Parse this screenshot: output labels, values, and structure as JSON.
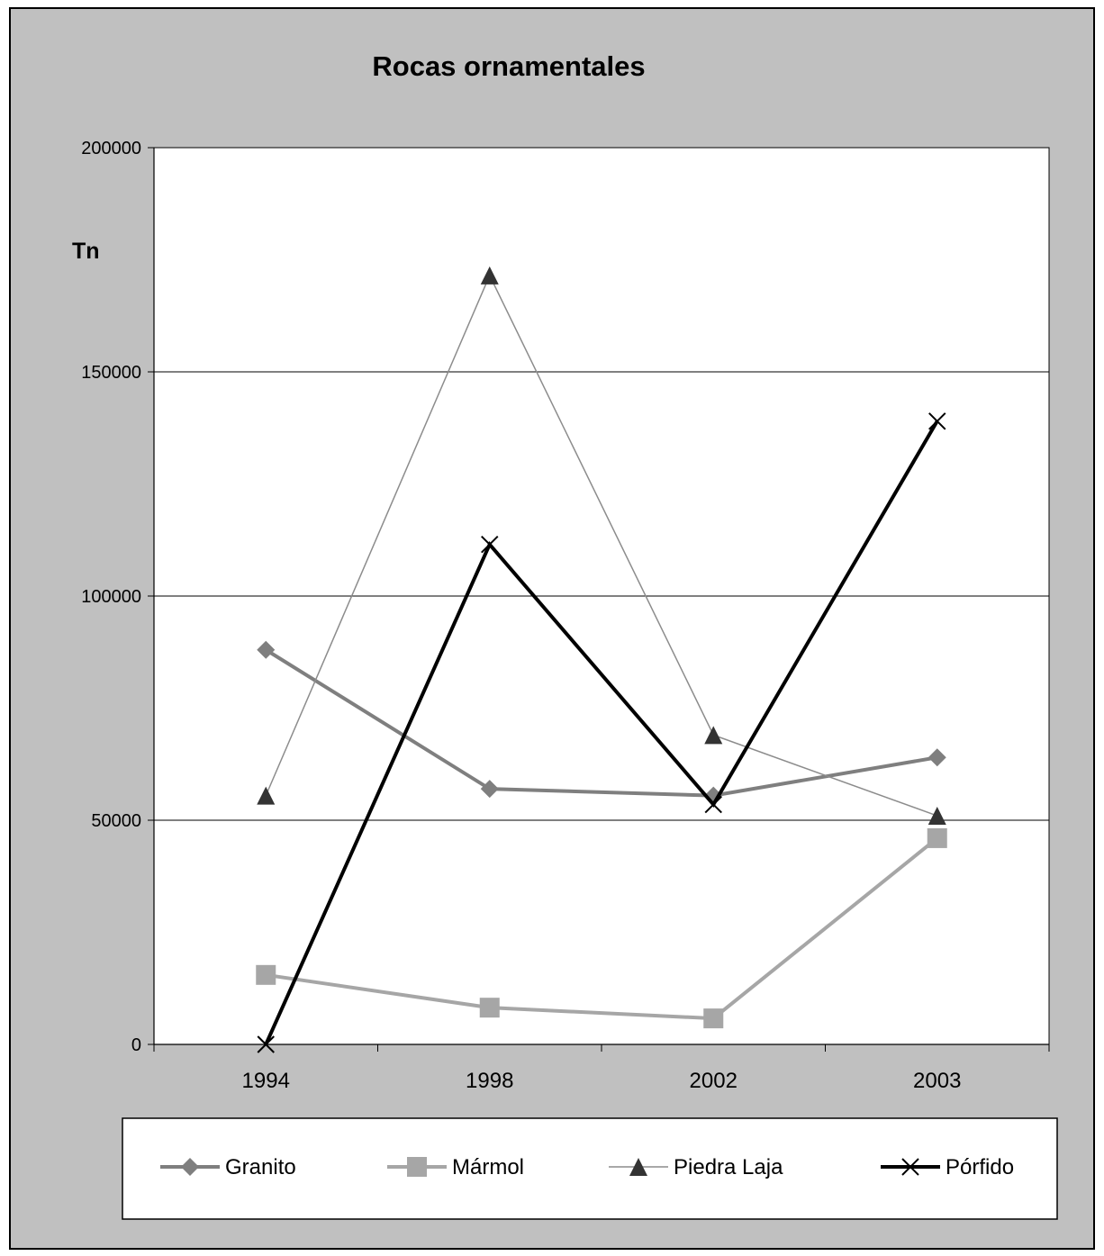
{
  "chart_data": {
    "type": "line",
    "title": "Rocas ornamentales",
    "ylabel": "Tn",
    "xlabel": "",
    "categories": [
      "1994",
      "1998",
      "2002",
      "2003"
    ],
    "ylim": [
      0,
      200000
    ],
    "yticks": [
      0,
      50000,
      100000,
      150000,
      200000
    ],
    "grid": true,
    "legend_position": "bottom",
    "series": [
      {
        "name": "Granito",
        "values": [
          88000,
          57000,
          55500,
          64000
        ],
        "color": "#7f7f7f",
        "marker": "diamond",
        "stroke_width": 4
      },
      {
        "name": "Mármol",
        "values": [
          15500,
          8200,
          5800,
          46000
        ],
        "color": "#a6a6a6",
        "marker": "square",
        "stroke_width": 4
      },
      {
        "name": "Piedra Laja",
        "values": [
          55500,
          171500,
          69000,
          51000
        ],
        "color": "#8c8c8c",
        "marker": "triangle",
        "stroke_width": 1.5
      },
      {
        "name": "Pórfido",
        "values": [
          0,
          111500,
          53500,
          139000
        ],
        "color": "#000000",
        "marker": "x",
        "stroke_width": 4
      }
    ]
  },
  "colors": {
    "outer_background": "#c0c0c0",
    "plot_background": "#ffffff",
    "legend_background": "#ffffff",
    "border": "#000000"
  }
}
